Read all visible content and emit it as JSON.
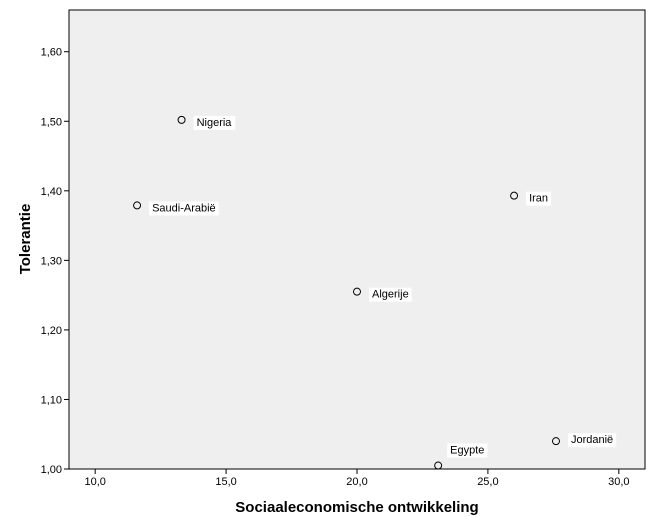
{
  "chart_data": {
    "type": "scatter",
    "title": "",
    "xlabel": "Sociaaleconomische ontwikkeling",
    "ylabel": "Tolerantie",
    "xlim": [
      9.0,
      31.0
    ],
    "ylim": [
      1.0,
      1.66
    ],
    "grid": false,
    "x_ticks": [
      10,
      15,
      20,
      25,
      30
    ],
    "x_tick_labels": [
      "10,0",
      "15,0",
      "20,0",
      "25,0",
      "30,0"
    ],
    "y_ticks": [
      1.0,
      1.1,
      1.2,
      1.3,
      1.4,
      1.5,
      1.6
    ],
    "y_tick_labels": [
      "1,00",
      "1,10",
      "1,20",
      "1,30",
      "1,40",
      "1,50",
      "1,60"
    ],
    "points": [
      {
        "label": "Nigeria",
        "x": 13.3,
        "y": 1.502
      },
      {
        "label": "Saudi-Arabië",
        "x": 11.6,
        "y": 1.379
      },
      {
        "label": "Iran",
        "x": 26.0,
        "y": 1.393
      },
      {
        "label": "Algerije",
        "x": 20.0,
        "y": 1.255
      },
      {
        "label": "Egypte",
        "x": 23.1,
        "y": 1.005
      },
      {
        "label": "Jordanië",
        "x": 27.6,
        "y": 1.04
      }
    ]
  },
  "colors": {
    "plot_background": "#efefef",
    "frame": "#000000",
    "marker_stroke": "#000000",
    "label_background": "#ffffff"
  }
}
